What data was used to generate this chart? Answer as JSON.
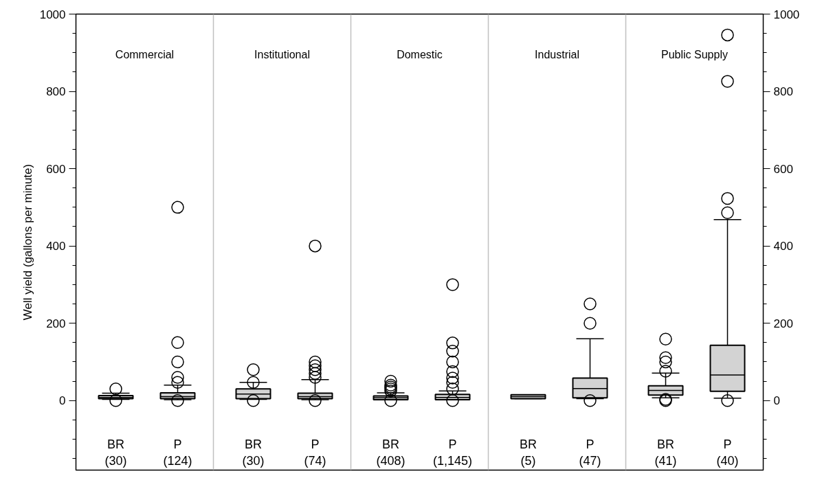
{
  "chart_data": {
    "type": "box",
    "ylabel": "Well yield (gallons per minute)",
    "categories": [
      "BR\n(30)",
      "P\n(124)",
      "BR\n(30)",
      "P\n(74)",
      "BR\n(408)",
      "P\n(1,145)",
      "BR\n(5)",
      "P\n(47)",
      "BR\n(41)",
      "P\n(40)"
    ],
    "annotations": [
      "Commercial",
      "Institutional",
      "Domestic",
      "Industrial",
      "Public Supply"
    ],
    "color": "#d3d3d3",
    "boxes": [
      {
        "low": 3,
        "q1": 5,
        "median": 8,
        "q3": 13,
        "high": 19,
        "outliers": [
          0,
          30
        ]
      },
      {
        "low": 2,
        "q1": 5,
        "median": 10,
        "q3": 20,
        "high": 40,
        "outliers": [
          0,
          47,
          60,
          100,
          150,
          500
        ]
      },
      {
        "low": 3,
        "q1": 5,
        "median": 17,
        "q3": 30,
        "high": 47,
        "outliers": [
          0,
          47,
          80
        ]
      },
      {
        "low": 2,
        "q1": 5,
        "median": 10,
        "q3": 19,
        "high": 54,
        "outliers": [
          0,
          60,
          70,
          80,
          90,
          100,
          400
        ]
      },
      {
        "low": 2,
        "q1": 2,
        "median": 7,
        "q3": 12,
        "high": 20,
        "outliers": [
          0,
          25,
          30,
          35,
          40,
          50
        ]
      },
      {
        "low": 2,
        "q1": 2,
        "median": 8,
        "q3": 16,
        "high": 25,
        "outliers": [
          0,
          30,
          47,
          58,
          75,
          100,
          128,
          149,
          300
        ]
      },
      {
        "low": 5,
        "q1": 5,
        "median": 10,
        "q3": 15,
        "high": 15
      },
      {
        "low": 5,
        "q1": 7,
        "median": 31,
        "q3": 58,
        "high": 160,
        "outliers": [
          0,
          200,
          250
        ]
      },
      {
        "low": 7,
        "q1": 14,
        "median": 26,
        "q3": 38,
        "high": 71,
        "outliers": [
          0,
          3,
          76,
          100,
          111,
          159
        ]
      },
      {
        "low": 6,
        "q1": 24,
        "median": 66,
        "q3": 143,
        "high": 468,
        "outliers": [
          0,
          486,
          523,
          826,
          946
        ]
      }
    ],
    "ylim": [
      -180,
      1000
    ],
    "yticks": [
      0,
      200,
      400,
      600,
      800,
      1000
    ],
    "y2lim": [
      -180,
      1000
    ],
    "y2ticks": [
      0,
      200,
      400,
      600,
      800,
      1000
    ],
    "grid": false
  }
}
